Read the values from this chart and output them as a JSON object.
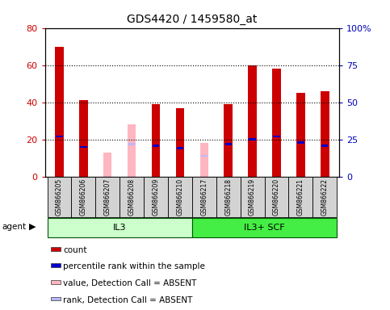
{
  "title": "GDS4420 / 1459580_at",
  "samples": [
    "GSM866205",
    "GSM866206",
    "GSM866207",
    "GSM866208",
    "GSM866209",
    "GSM866210",
    "GSM866217",
    "GSM866218",
    "GSM866219",
    "GSM866220",
    "GSM866221",
    "GSM866222"
  ],
  "count_values": [
    70,
    41,
    null,
    null,
    39,
    37,
    null,
    39,
    60,
    58,
    45,
    46
  ],
  "rank_values": [
    27,
    20,
    null,
    22,
    21,
    19,
    null,
    22,
    25,
    27,
    23,
    21
  ],
  "absent_value_values": [
    null,
    null,
    13,
    28,
    null,
    null,
    18,
    null,
    null,
    null,
    null,
    null
  ],
  "absent_rank_values": [
    null,
    null,
    null,
    22,
    null,
    null,
    14,
    null,
    null,
    null,
    null,
    null
  ],
  "ylim_left": [
    0,
    80
  ],
  "ylim_right": [
    0,
    100
  ],
  "yticks_left": [
    0,
    20,
    40,
    60,
    80
  ],
  "yticks_right": [
    0,
    25,
    50,
    75,
    100
  ],
  "ytick_labels_right": [
    "0",
    "25",
    "50",
    "75",
    "100%"
  ],
  "count_color": "#cc0000",
  "rank_color": "#0000cc",
  "absent_value_color": "#ffb6c1",
  "absent_rank_color": "#b8b8ff",
  "left_axis_color": "#cc0000",
  "right_axis_color": "#0000bb",
  "groups": [
    {
      "label": "IL3",
      "start": 0,
      "end": 6,
      "color": "#ccffcc"
    },
    {
      "label": "IL3+ SCF",
      "start": 6,
      "end": 12,
      "color": "#44ee44"
    }
  ],
  "legend_items": [
    {
      "label": "count",
      "color": "#cc0000"
    },
    {
      "label": "percentile rank within the sample",
      "color": "#0000cc"
    },
    {
      "label": "value, Detection Call = ABSENT",
      "color": "#ffb6c1"
    },
    {
      "label": "rank, Detection Call = ABSENT",
      "color": "#b8b8ff"
    }
  ]
}
